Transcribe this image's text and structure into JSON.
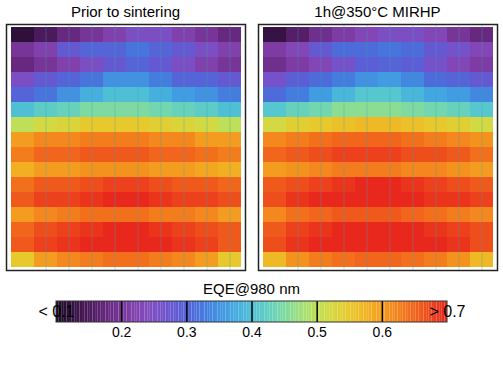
{
  "chart_data": {
    "type": "heatmap",
    "tick_labels": false,
    "panels": [
      {
        "title": "Prior to sintering",
        "cells": [
          [
            0.12,
            0.15,
            0.18,
            0.2,
            0.22,
            0.25,
            0.25,
            0.22,
            0.2,
            0.18
          ],
          [
            0.2,
            0.22,
            0.28,
            0.3,
            0.3,
            0.32,
            0.3,
            0.28,
            0.25,
            0.22
          ],
          [
            0.18,
            0.2,
            0.22,
            0.25,
            0.28,
            0.3,
            0.28,
            0.25,
            0.22,
            0.2
          ],
          [
            0.25,
            0.28,
            0.3,
            0.32,
            0.35,
            0.35,
            0.33,
            0.3,
            0.3,
            0.28
          ],
          [
            0.3,
            0.32,
            0.35,
            0.38,
            0.4,
            0.4,
            0.38,
            0.36,
            0.35,
            0.33
          ],
          [
            0.4,
            0.42,
            0.43,
            0.45,
            0.45,
            0.45,
            0.44,
            0.43,
            0.42,
            0.4
          ],
          [
            0.5,
            0.52,
            0.53,
            0.55,
            0.55,
            0.55,
            0.54,
            0.53,
            0.52,
            0.5
          ],
          [
            0.6,
            0.62,
            0.62,
            0.63,
            0.63,
            0.63,
            0.62,
            0.62,
            0.6,
            0.6
          ],
          [
            0.63,
            0.65,
            0.65,
            0.66,
            0.66,
            0.66,
            0.65,
            0.65,
            0.64,
            0.63
          ],
          [
            0.58,
            0.6,
            0.6,
            0.61,
            0.61,
            0.61,
            0.6,
            0.6,
            0.59,
            0.58
          ],
          [
            0.64,
            0.66,
            0.66,
            0.67,
            0.68,
            0.68,
            0.67,
            0.66,
            0.66,
            0.65
          ],
          [
            0.66,
            0.68,
            0.68,
            0.69,
            0.7,
            0.7,
            0.69,
            0.68,
            0.68,
            0.67
          ],
          [
            0.6,
            0.62,
            0.63,
            0.64,
            0.64,
            0.64,
            0.63,
            0.63,
            0.62,
            0.6
          ],
          [
            0.65,
            0.67,
            0.68,
            0.69,
            0.7,
            0.7,
            0.69,
            0.68,
            0.67,
            0.66
          ],
          [
            0.66,
            0.68,
            0.69,
            0.7,
            0.7,
            0.7,
            0.7,
            0.69,
            0.68,
            0.66
          ],
          [
            0.55,
            0.6,
            0.62,
            0.63,
            0.64,
            0.64,
            0.63,
            0.62,
            0.6,
            0.55
          ]
        ]
      },
      {
        "title": "1h@350°C MIRHP",
        "cells": [
          [
            0.13,
            0.16,
            0.19,
            0.21,
            0.23,
            0.25,
            0.25,
            0.23,
            0.2,
            0.18
          ],
          [
            0.21,
            0.23,
            0.28,
            0.31,
            0.31,
            0.32,
            0.31,
            0.28,
            0.26,
            0.23
          ],
          [
            0.19,
            0.21,
            0.23,
            0.26,
            0.29,
            0.3,
            0.29,
            0.26,
            0.23,
            0.21
          ],
          [
            0.26,
            0.29,
            0.31,
            0.33,
            0.35,
            0.36,
            0.34,
            0.31,
            0.3,
            0.28
          ],
          [
            0.31,
            0.33,
            0.36,
            0.39,
            0.41,
            0.41,
            0.39,
            0.37,
            0.36,
            0.34
          ],
          [
            0.41,
            0.43,
            0.44,
            0.46,
            0.46,
            0.46,
            0.45,
            0.44,
            0.43,
            0.41
          ],
          [
            0.52,
            0.54,
            0.55,
            0.56,
            0.57,
            0.57,
            0.56,
            0.55,
            0.54,
            0.52
          ],
          [
            0.62,
            0.63,
            0.64,
            0.65,
            0.65,
            0.65,
            0.64,
            0.63,
            0.62,
            0.61
          ],
          [
            0.65,
            0.66,
            0.67,
            0.68,
            0.68,
            0.68,
            0.67,
            0.67,
            0.66,
            0.64
          ],
          [
            0.6,
            0.61,
            0.62,
            0.63,
            0.63,
            0.63,
            0.62,
            0.62,
            0.61,
            0.6
          ],
          [
            0.66,
            0.67,
            0.68,
            0.69,
            0.7,
            0.7,
            0.69,
            0.68,
            0.67,
            0.66
          ],
          [
            0.67,
            0.69,
            0.7,
            0.7,
            0.7,
            0.7,
            0.7,
            0.69,
            0.69,
            0.68
          ],
          [
            0.62,
            0.64,
            0.65,
            0.66,
            0.66,
            0.66,
            0.65,
            0.64,
            0.63,
            0.62
          ],
          [
            0.66,
            0.68,
            0.69,
            0.7,
            0.7,
            0.7,
            0.7,
            0.69,
            0.68,
            0.67
          ],
          [
            0.67,
            0.69,
            0.7,
            0.7,
            0.7,
            0.7,
            0.7,
            0.7,
            0.69,
            0.67
          ],
          [
            0.57,
            0.61,
            0.63,
            0.64,
            0.65,
            0.65,
            0.64,
            0.63,
            0.61,
            0.57
          ]
        ]
      }
    ],
    "colorbar": {
      "label": "EQE@980 nm",
      "range": [
        0.1,
        0.7
      ],
      "ticks": [
        {
          "value": 0.1,
          "label": "< 0.1"
        },
        0.2,
        0.3,
        0.4,
        0.5,
        0.6,
        {
          "value": 0.7,
          "label": "> 0.7"
        }
      ]
    }
  }
}
